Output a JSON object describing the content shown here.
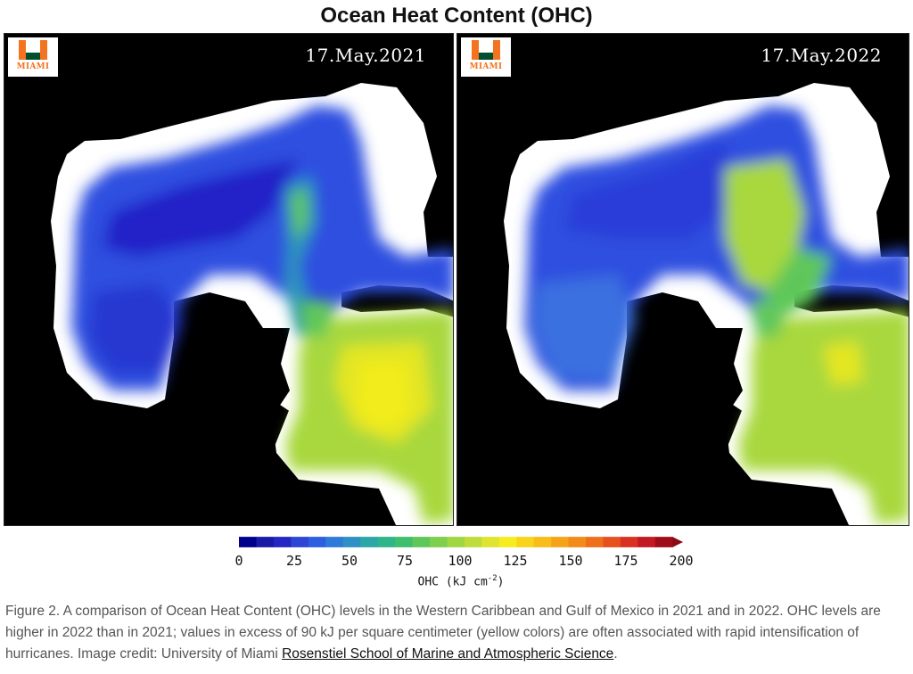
{
  "title": "Ocean Heat Content (OHC)",
  "panels": [
    {
      "date": "17.May.2021",
      "logo_text": "MIAMI"
    },
    {
      "date": "17.May.2022",
      "logo_text": "MIAMI"
    }
  ],
  "colorbar": {
    "ticks": [
      "0",
      "25",
      "50",
      "75",
      "100",
      "125",
      "150",
      "175",
      "200"
    ],
    "label_base": "OHC (kJ cm",
    "label_exp": "-2",
    "label_end": ")",
    "colors": [
      "#00008b",
      "#1a1aa6",
      "#2626c4",
      "#2f45d6",
      "#2d5ee0",
      "#2e7ad8",
      "#2f90c4",
      "#2da6a8",
      "#2fb58a",
      "#3fbf6e",
      "#5ec75a",
      "#7ecf4c",
      "#9fd642",
      "#bfdd3a",
      "#dfe430",
      "#f7ec1f",
      "#f8d51c",
      "#f8bd1a",
      "#f5a41a",
      "#f28b1a",
      "#ee6f1c",
      "#e6511f",
      "#d93222",
      "#c21922",
      "#a00d1a"
    ],
    "arrow_color": "#8b0a14"
  },
  "map_colors": {
    "land": "#000000",
    "shelf": "#ffffff",
    "deep_blue": "#2424c8",
    "blue": "#2d4fe0",
    "blue_light": "#3a70e0",
    "teal": "#2e98b8",
    "green": "#5ec75a",
    "yellow_green": "#a8d83e",
    "yellow": "#f2ec1c"
  },
  "caption": {
    "text": "Figure 2. A comparison of Ocean Heat Content (OHC) levels in the Western Caribbean and Gulf of Mexico in 2021 and in 2022. OHC levels are higher in 2022 than in 2021; values in excess of 90 kJ per square centimeter (yellow colors) are often associated with rapid intensification of hurricanes. Image credit: University of Miami ",
    "link": "Rosenstiel School of Marine and Atmospheric Science",
    "end": "."
  }
}
